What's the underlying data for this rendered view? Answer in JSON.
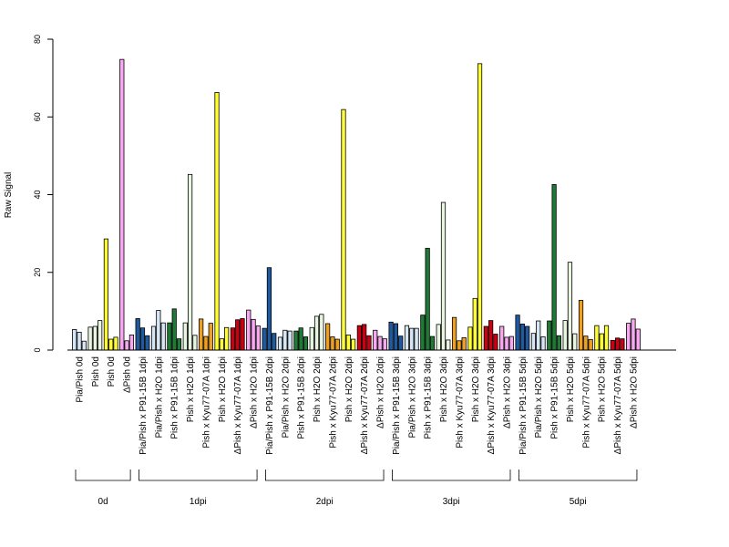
{
  "chart_data": {
    "type": "bar",
    "ylabel": "Raw Signal",
    "ylim": [
      0,
      80
    ],
    "yticks": [
      0,
      20,
      40,
      60,
      80
    ],
    "grid": false,
    "categories": [
      {
        "label": "Pia/Pish 0d",
        "color": "#d6e6f5",
        "values": [
          5.3,
          4.6,
          2.3
        ]
      },
      {
        "label": "Pish 0d",
        "color": "#e8f5e0",
        "values": [
          5.9,
          6.1,
          7.6
        ]
      },
      {
        "label": "Pish 0d",
        "color": "#ffff33",
        "values": [
          28.6,
          2.8,
          3.3
        ]
      },
      {
        "label": "ΔPish 0d",
        "color": "#f7a8f0",
        "values": [
          74.8,
          2.4,
          3.9
        ]
      },
      {
        "label": "Pia/Pish x P91-15B 1dpi",
        "color": "#1f5aa0",
        "values": [
          8.1,
          5.7,
          3.7
        ]
      },
      {
        "label": "Pia/Pish x H2O 1dpi",
        "color": "#d6e6f5",
        "values": [
          6.1,
          10.2,
          7.0
        ]
      },
      {
        "label": "Pish x P91-15B 1dpi",
        "color": "#1e7a34",
        "values": [
          7.0,
          10.6,
          2.9
        ]
      },
      {
        "label": "Pish x H2O 1dpi",
        "color": "#e8f5e0",
        "values": [
          7.0,
          45.2,
          3.8
        ]
      },
      {
        "label": "Pish x Kyu77-07A 1dpi",
        "color": "#f0a020",
        "values": [
          8.0,
          3.5,
          6.9
        ]
      },
      {
        "label": "Pish x H2O 1dpi",
        "color": "#ffff33",
        "values": [
          66.3,
          2.9,
          5.8
        ]
      },
      {
        "label": "ΔPish x Kyu77-07A 1dpi",
        "color": "#cc0010",
        "values": [
          5.7,
          7.8,
          8.1
        ]
      },
      {
        "label": "ΔPish x H2O 1dpi",
        "color": "#f7a8f0",
        "values": [
          10.3,
          7.9,
          6.2
        ]
      },
      {
        "label": "Pia/Pish x P91-15B 2dpi",
        "color": "#1f5aa0",
        "values": [
          5.6,
          21.2,
          4.3
        ]
      },
      {
        "label": "Pia/Pish x H2O 2dpi",
        "color": "#d6e6f5",
        "values": [
          3.3,
          5.1,
          4.9
        ]
      },
      {
        "label": "Pish x P91-15B 2dpi",
        "color": "#1e7a34",
        "values": [
          4.9,
          5.7,
          3.4
        ]
      },
      {
        "label": "Pish x H2O 2dpi",
        "color": "#e8f5e0",
        "values": [
          5.8,
          8.7,
          9.2
        ]
      },
      {
        "label": "Pish x Kyu77-07A 2dpi",
        "color": "#f0a020",
        "values": [
          6.8,
          3.4,
          2.8
        ]
      },
      {
        "label": "Pish x H2O 2dpi",
        "color": "#ffff33",
        "values": [
          61.9,
          3.9,
          2.8
        ]
      },
      {
        "label": "ΔPish x Kyu77-07A 2dpi",
        "color": "#cc0010",
        "values": [
          6.3,
          6.6,
          3.7
        ]
      },
      {
        "label": "ΔPish x H2O 2dpi",
        "color": "#f7a8f0",
        "values": [
          5.1,
          3.5,
          2.9
        ]
      },
      {
        "label": "Pia/Pish x P91-15B 3dpi",
        "color": "#1f5aa0",
        "values": [
          7.2,
          6.8,
          3.6
        ]
      },
      {
        "label": "Pia/Pish x H2O 3dpi",
        "color": "#d6e6f5",
        "values": [
          6.3,
          5.6,
          5.6
        ]
      },
      {
        "label": "Pish x P91-15B 3dpi",
        "color": "#1e7a34",
        "values": [
          9.0,
          26.2,
          3.5
        ]
      },
      {
        "label": "Pish x H2O 3dpi",
        "color": "#e8f5e0",
        "values": [
          6.6,
          38.0,
          2.6
        ]
      },
      {
        "label": "Pish x Kyu77-07A 3dpi",
        "color": "#f0a020",
        "values": [
          8.4,
          2.4,
          3.2
        ]
      },
      {
        "label": "Pish x H2O 3dpi",
        "color": "#ffff33",
        "values": [
          5.9,
          13.3,
          73.7
        ]
      },
      {
        "label": "ΔPish x Kyu77-07A 3dpi",
        "color": "#cc0010",
        "values": [
          6.1,
          7.6,
          4.1
        ]
      },
      {
        "label": "ΔPish x H2O 3dpi",
        "color": "#f7a8f0",
        "values": [
          6.1,
          3.3,
          3.5
        ]
      },
      {
        "label": "Pia/Pish x P91-15B 5dpi",
        "color": "#1f5aa0",
        "values": [
          9.0,
          6.7,
          6.1
        ]
      },
      {
        "label": "Pia/Pish x H2O 5dpi",
        "color": "#d6e6f5",
        "values": [
          4.3,
          7.5,
          3.4
        ]
      },
      {
        "label": "Pish x P91-15B 5dpi",
        "color": "#1e7a34",
        "values": [
          7.5,
          42.6,
          3.7
        ]
      },
      {
        "label": "Pish x H2O 5dpi",
        "color": "#e8f5e0",
        "values": [
          7.6,
          22.6,
          4.2
        ]
      },
      {
        "label": "Pish x Kyu77-07A 5dpi",
        "color": "#f0a020",
        "values": [
          12.8,
          3.6,
          2.7
        ]
      },
      {
        "label": "Pish x H2O 5dpi",
        "color": "#ffff33",
        "values": [
          6.3,
          4.2,
          6.3
        ]
      },
      {
        "label": "ΔPish x Kyu77-07A 5dpi",
        "color": "#cc0010",
        "values": [
          2.5,
          3.1,
          2.9
        ]
      },
      {
        "label": "ΔPish x H2O 5dpi",
        "color": "#f7a8f0",
        "values": [
          6.9,
          8.0,
          5.4
        ]
      }
    ],
    "groups": [
      {
        "label": "0d",
        "first": 0,
        "last": 3
      },
      {
        "label": "1dpi",
        "first": 4,
        "last": 11
      },
      {
        "label": "2dpi",
        "first": 12,
        "last": 19
      },
      {
        "label": "3dpi",
        "first": 20,
        "last": 27
      },
      {
        "label": "5dpi",
        "first": 28,
        "last": 35
      }
    ]
  }
}
